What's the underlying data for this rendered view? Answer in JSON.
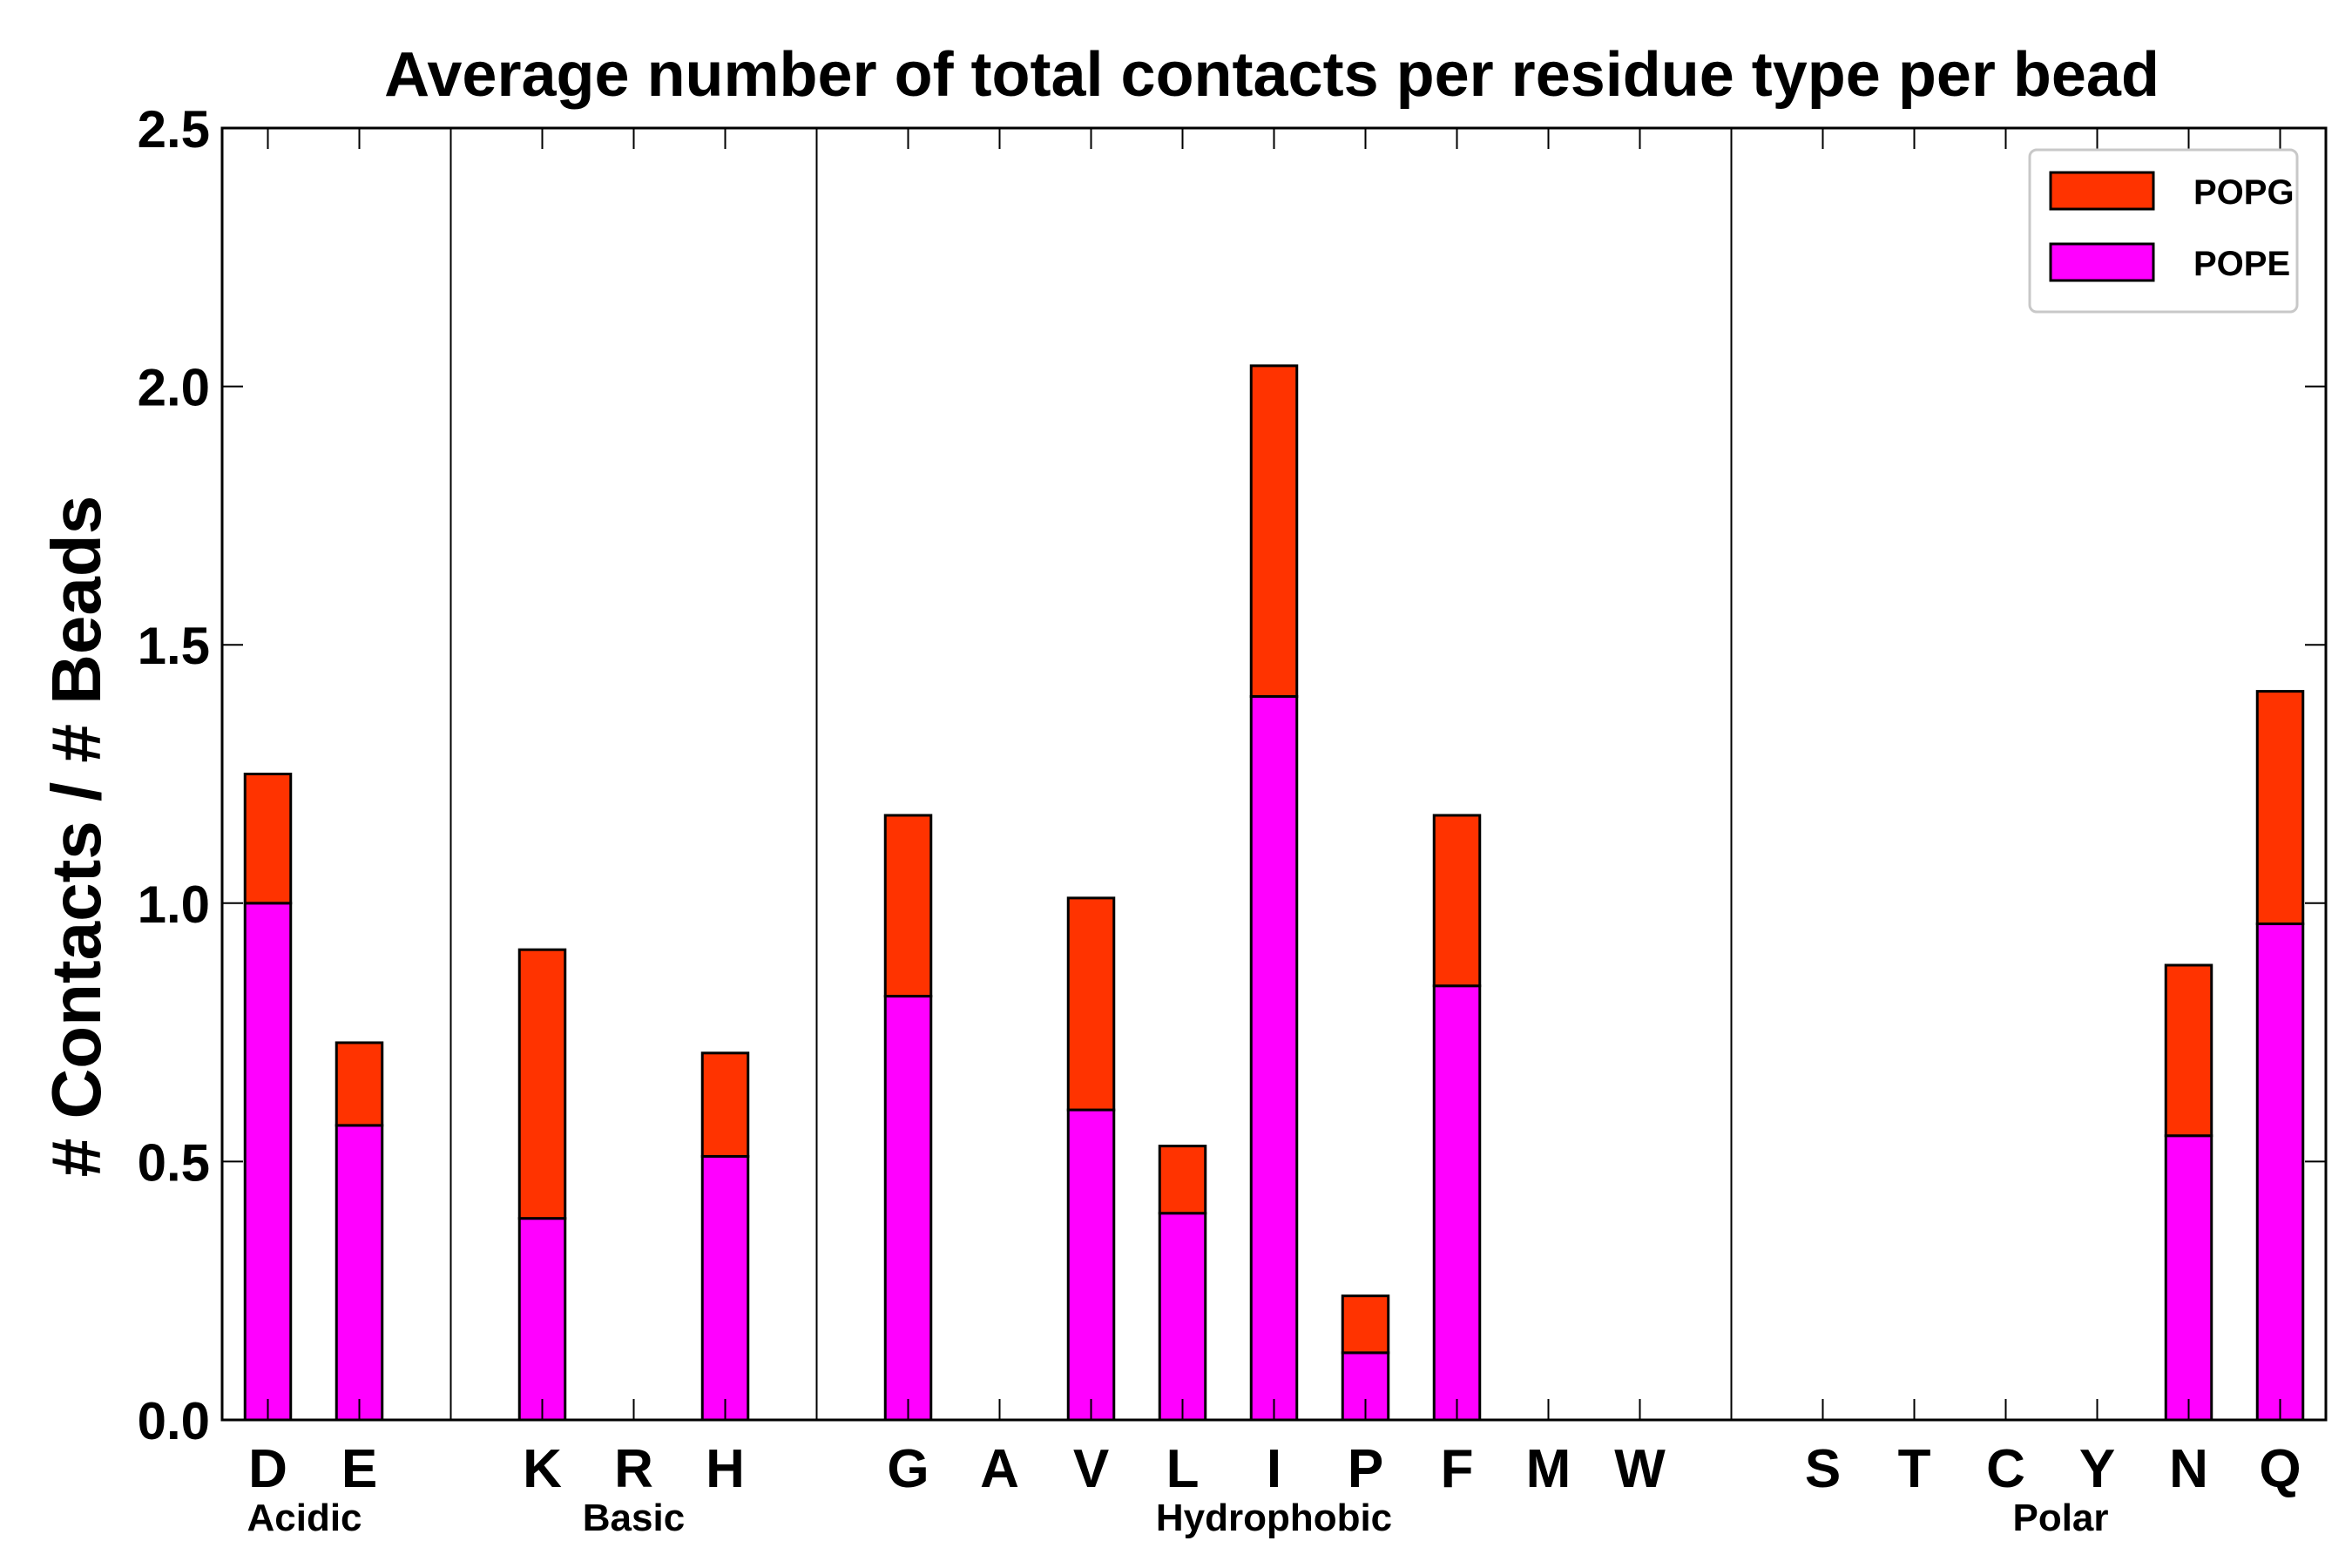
{
  "chart_data": {
    "type": "bar",
    "stacked": true,
    "title": "Average number of total contacts per residue type per bead",
    "xlabel": "",
    "ylabel": "# Contacts / # Beads",
    "ylim": [
      0,
      2.5
    ],
    "yticks": [
      "0.0",
      "0.5",
      "1.0",
      "1.5",
      "2.0",
      "2.5"
    ],
    "grid": false,
    "legend_position": "top-right",
    "categories": [
      "D",
      "E",
      "",
      "K",
      "R",
      "H",
      "",
      "G",
      "A",
      "V",
      "L",
      "I",
      "P",
      "F",
      "M",
      "W",
      "",
      "S",
      "T",
      "C",
      "Y",
      "N",
      "Q"
    ],
    "series": [
      {
        "name": "POPE",
        "color": "#ff00ff",
        "values": [
          1.0,
          0.57,
          0,
          0.39,
          0,
          0.51,
          0,
          0.82,
          0,
          0.6,
          0.4,
          1.4,
          0.13,
          0.84,
          0,
          0,
          0,
          0,
          0,
          0,
          0,
          0.55,
          0.96
        ]
      },
      {
        "name": "POPG",
        "color": "#ff3300",
        "values": [
          0.25,
          0.16,
          0,
          0.52,
          0,
          0.2,
          0,
          0.35,
          0,
          0.41,
          0.13,
          0.64,
          0.11,
          0.33,
          0,
          0,
          0,
          0,
          0,
          0,
          0,
          0.33,
          0.45
        ]
      }
    ],
    "group_separators_after_index": [
      2,
      6,
      16
    ],
    "groups": [
      {
        "label": "Acidic",
        "anchor_index": 0.4
      },
      {
        "label": "Basic",
        "anchor_index": 4
      },
      {
        "label": "Hydrophobic",
        "anchor_index": 11
      },
      {
        "label": "Polar",
        "anchor_index": 19.6
      }
    ],
    "legend_entries": [
      "POPG",
      "POPE"
    ]
  }
}
